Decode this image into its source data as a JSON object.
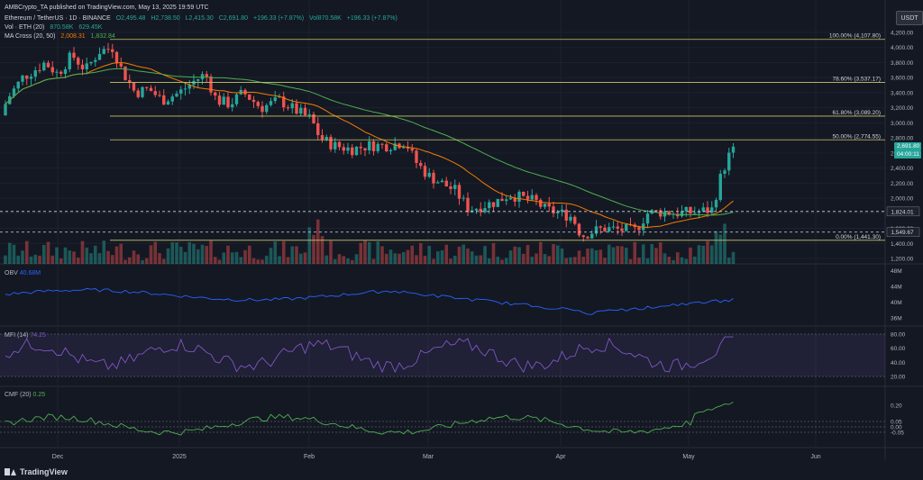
{
  "author_line": "AMBCrypto_TA published on TradingView.com, May 13, 2025 19:59 UTC",
  "symbol_line": {
    "title": "Ethereum / TetherUS · 1D · BINANCE",
    "o": "O2,495.48",
    "h": "H2,738.50",
    "l": "L2,415.30",
    "c": "C2,691.80",
    "chg": "+196.33 (+7.87%)",
    "vol": "Vol870.58K",
    "vol_chg": "+196.33 (+7.87%)"
  },
  "vol_line": {
    "label": "Vol · ETH (20)",
    "v1": "870.58K",
    "v2": "629.45K"
  },
  "ma_line": {
    "label": "MA Cross (20, 50)",
    "v1": "2,008.31",
    "v2": "1,832.84"
  },
  "currency": "USDT",
  "price_axis": [
    "4,200.00",
    "4,000.00",
    "3,800.00",
    "3,600.00",
    "3,400.00",
    "3,200.00",
    "3,000.00",
    "2,800.00",
    "2,600.00",
    "2,400.00",
    "2,200.00",
    "2,000.00",
    "1,800.00",
    "1,600.00",
    "1,400.00",
    "1,200.00"
  ],
  "obv_axis": [
    "48M",
    "44M",
    "40M",
    "36M"
  ],
  "mfi_axis": [
    "80.00",
    "60.00",
    "40.00",
    "20.00"
  ],
  "cmf_axis": [
    "0.20",
    "0.05",
    "0.00",
    "-0.05"
  ],
  "time_axis": [
    "Dec",
    "2025",
    "Feb",
    "Mar",
    "Apr",
    "May",
    "Jun"
  ],
  "fib": [
    {
      "label": "100.00% (4,107.80)",
      "price": 4107.8
    },
    {
      "label": "78.60% (3,537.17)",
      "price": 3537.17
    },
    {
      "label": "61.80% (3,089.20)",
      "price": 3089.2
    },
    {
      "label": "50.00% (2,774.55)",
      "price": 2774.55
    },
    {
      "label": "0.00% (1,441.30)",
      "price": 1441.3
    }
  ],
  "hlines": [
    {
      "label": "1,824.01",
      "price": 1824.01
    },
    {
      "label": "1,549.67",
      "price": 1549.67
    }
  ],
  "last_price": {
    "value": "2,691.80",
    "countdown": "04:00:11"
  },
  "obv": {
    "label": "OBV",
    "value": "40.68M"
  },
  "mfi": {
    "label": "MFI (14)",
    "value": "74.25"
  },
  "cmf": {
    "label": "CMF (20)",
    "value": "0.25"
  },
  "logo": "TradingView",
  "colors": {
    "up": "#26a69a",
    "down": "#ef5350",
    "fib": "#c8c864",
    "ma20": "#f57c00",
    "ma50": "#4caf50",
    "obv": "#2962ff",
    "mfi": "#7e57c2",
    "cmf": "#4caf50"
  }
}
